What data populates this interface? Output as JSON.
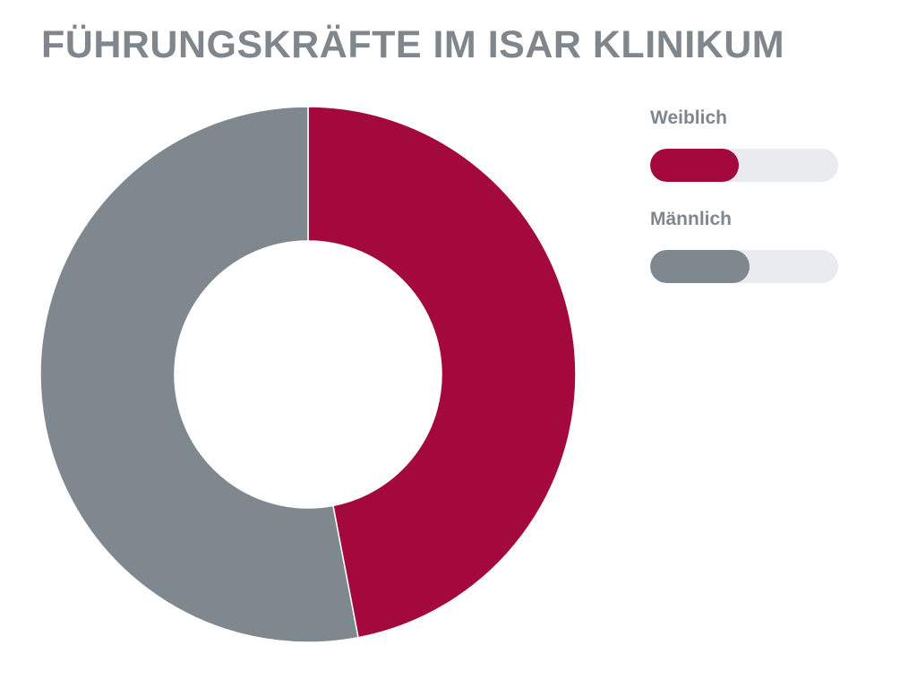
{
  "chart_data": {
    "type": "pie",
    "title": "FÜHRUNGSKRÄFTE IM ISAR KLINIKUM",
    "subtitle": "",
    "categories": [
      "Weiblich",
      "Männlich"
    ],
    "values": [
      47,
      53
    ],
    "colors": [
      "#a3093d",
      "#7f888e"
    ],
    "legend_position": "top-right",
    "legend_bar_fill": [
      0.47,
      0.53
    ],
    "legend_track_color": "#e9ebee"
  }
}
